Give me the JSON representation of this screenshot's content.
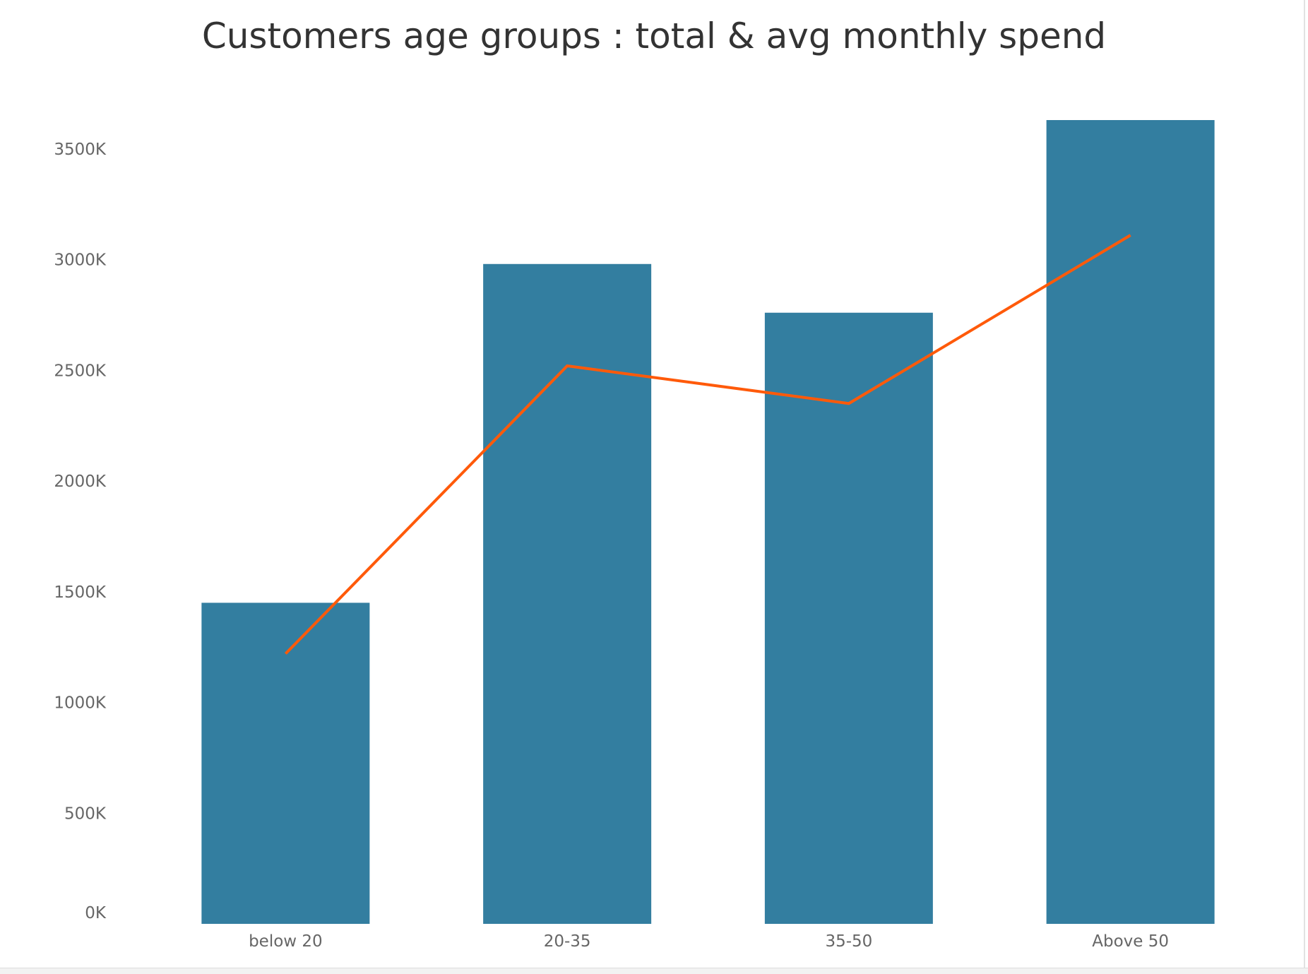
{
  "chart_data": {
    "type": "bar",
    "title": "Customers age groups : total & avg monthly spend",
    "categories": [
      "below 20",
      "20-35",
      "35-50",
      "Above 50"
    ],
    "series": [
      {
        "kind": "bar",
        "values": [
          1450000,
          2980000,
          2760000,
          3630000
        ],
        "color": "#337ea0"
      },
      {
        "kind": "line",
        "values": [
          1220000,
          2520000,
          2350000,
          3110000
        ],
        "color": "#ff5a0a"
      }
    ],
    "ylim": [
      0,
      3600000
    ],
    "yticks": [
      0,
      500000,
      1000000,
      1500000,
      2000000,
      2500000,
      3000000,
      3500000
    ],
    "ytick_labels": [
      "0K",
      "500K",
      "1000K",
      "1500K",
      "2000K",
      "2500K",
      "3000K",
      "3500K"
    ],
    "xlabel": "",
    "ylabel": "",
    "grid": false
  }
}
